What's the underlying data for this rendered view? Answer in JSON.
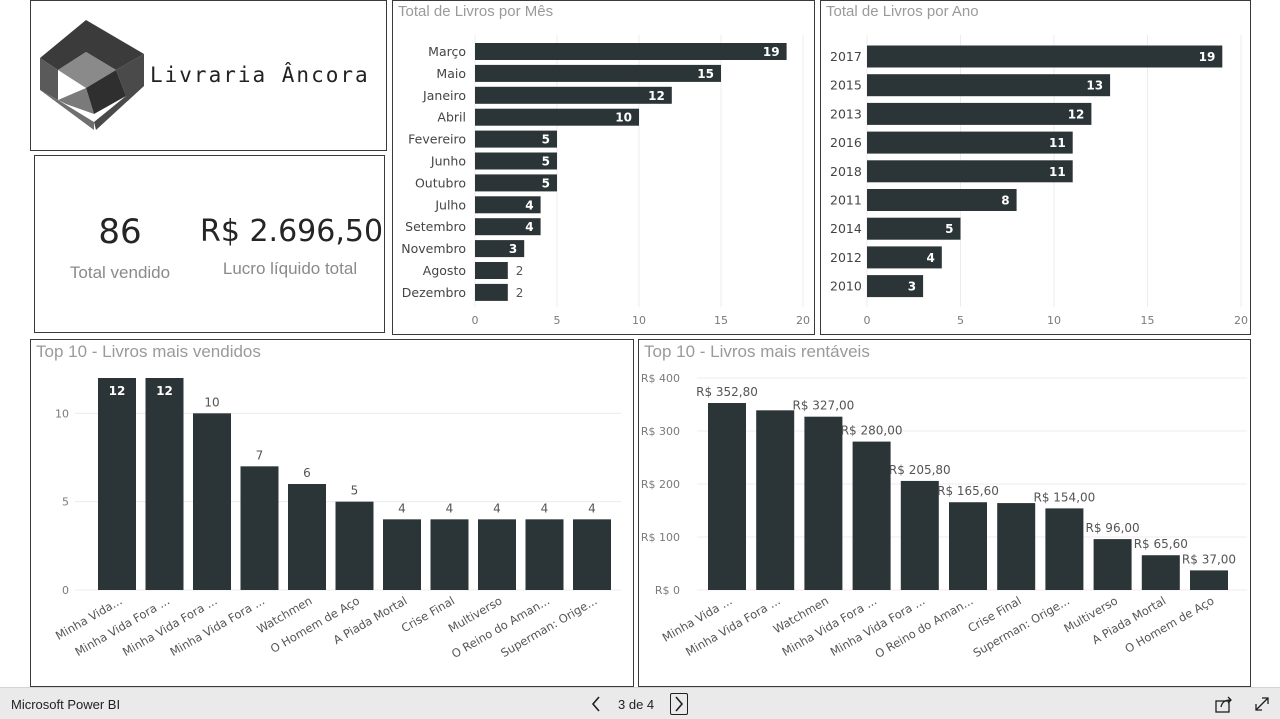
{
  "brand": {
    "name": "Livraria Âncora"
  },
  "kpis": {
    "total_sold": {
      "value": "86",
      "label": "Total vendido"
    },
    "net_profit": {
      "value": "R$ 2.696,50",
      "label": "Lucro líquido total"
    }
  },
  "footer": {
    "app_name": "Microsoft Power BI",
    "page_indicator": "3 de 4"
  },
  "colors": {
    "bar": "#2b3436",
    "panel_border": "#3a3a3a",
    "title": "#9a9a9a",
    "footer_bg": "#eaeaea"
  },
  "icons": [
    "logo-mark-icon",
    "chevron-left-icon",
    "chevron-right-icon",
    "share-icon",
    "fullscreen-icon"
  ],
  "chart_data": [
    {
      "id": "by_month",
      "type": "bar",
      "orientation": "horizontal",
      "title": "Total de Livros por Mês",
      "categories": [
        "Março",
        "Maio",
        "Janeiro",
        "Abril",
        "Fevereiro",
        "Junho",
        "Outubro",
        "Julho",
        "Setembro",
        "Novembro",
        "Agosto",
        "Dezembro"
      ],
      "values": [
        19,
        15,
        12,
        10,
        5,
        5,
        5,
        4,
        4,
        3,
        2,
        2
      ],
      "data_labels": [
        "19",
        "15",
        "12",
        "10",
        "5",
        "5",
        "5",
        "4",
        "4",
        "3",
        "2",
        "2"
      ],
      "xlim": [
        0,
        20
      ],
      "xticks": [
        0,
        5,
        10,
        15,
        20
      ],
      "tick_labels": [
        "0",
        "5",
        "10",
        "15",
        "20"
      ],
      "grid": true
    },
    {
      "id": "by_year",
      "type": "bar",
      "orientation": "horizontal",
      "title": "Total de Livros por Ano",
      "categories": [
        "2017",
        "2015",
        "2013",
        "2016",
        "2018",
        "2011",
        "2014",
        "2012",
        "2010"
      ],
      "values": [
        19,
        13,
        12,
        11,
        11,
        8,
        5,
        4,
        3
      ],
      "data_labels": [
        "19",
        "13",
        "12",
        "11",
        "11",
        "8",
        "5",
        "4",
        "3"
      ],
      "xlim": [
        0,
        20
      ],
      "xticks": [
        0,
        5,
        10,
        15,
        20
      ],
      "tick_labels": [
        "0",
        "5",
        "10",
        "15",
        "20"
      ],
      "grid": true
    },
    {
      "id": "top_sold",
      "type": "bar",
      "orientation": "vertical",
      "title": "Top 10 - Livros mais vendidos",
      "categories": [
        "Minha Vida...",
        "Minha Vida Fora ...",
        "Minha Vida Fora ...",
        "Minha Vida Fora ...",
        "Watchmen",
        "O Homem de Aço",
        "A Piada Mortal",
        "Crise Final",
        "Multiverso",
        "O Reino do Aman...",
        "Superman: Orige..."
      ],
      "values": [
        12,
        12,
        10,
        7,
        6,
        5,
        4,
        4,
        4,
        4,
        4
      ],
      "data_labels": [
        "12",
        "12",
        "10",
        "7",
        "6",
        "5",
        "4",
        "4",
        "4",
        "4",
        "4"
      ],
      "ylim": [
        0,
        12
      ],
      "yticks": [
        0,
        5,
        10
      ],
      "tick_labels": [
        "0",
        "5",
        "10"
      ],
      "grid": true
    },
    {
      "id": "top_profit",
      "type": "bar",
      "orientation": "vertical",
      "title": "Top 10 - Livros mais rentáveis",
      "categories": [
        "Minha Vida ...",
        "Minha Vida Fora ...",
        "Watchmen",
        "Minha Vida Fora ...",
        "Minha Vida Fora ...",
        "O Reino do Aman...",
        "Crise Final",
        "Superman: Orige...",
        "Multiverso",
        "A Piada Mortal",
        "O Homem de Aço"
      ],
      "values": [
        352.8,
        339,
        327,
        280,
        205.8,
        165.6,
        164,
        154,
        96,
        65.6,
        37
      ],
      "data_labels": [
        "R$ 352,80",
        "",
        "R$ 327,00",
        "R$ 280,00",
        "R$ 205,80",
        "R$ 165,60",
        "",
        "R$ 154,00",
        "R$ 96,00",
        "R$ 65,60",
        "R$ 37,00"
      ],
      "ylim": [
        0,
        400
      ],
      "yticks": [
        0,
        100,
        200,
        300,
        400
      ],
      "tick_labels": [
        "R$ 0",
        "R$ 100",
        "R$ 200",
        "R$ 300",
        "R$ 400"
      ],
      "grid": true
    }
  ]
}
